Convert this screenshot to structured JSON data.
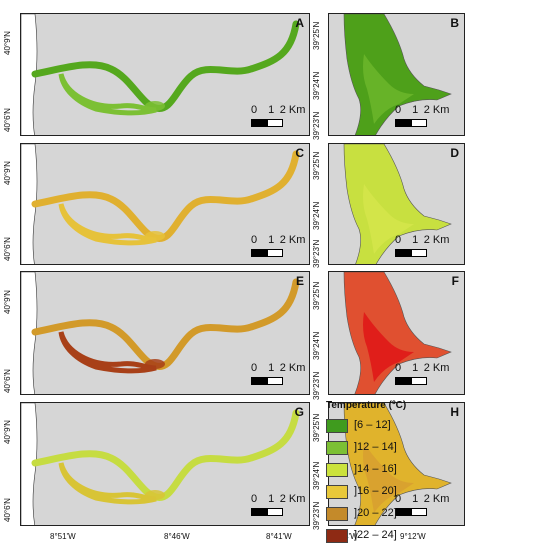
{
  "panels": [
    {
      "id": "A",
      "label": "A",
      "fill": "#55a81e",
      "inner": "#7cc034"
    },
    {
      "id": "B",
      "label": "B",
      "fill": "#4ea01a",
      "inner": "#6ab52a"
    },
    {
      "id": "C",
      "label": "C",
      "fill": "#e0b030",
      "inner": "#e6c23a"
    },
    {
      "id": "D",
      "label": "D",
      "fill": "#c8e040",
      "inner": "#d4e64a"
    },
    {
      "id": "E",
      "label": "E",
      "fill": "#d29a2a",
      "inner": "#a84018"
    },
    {
      "id": "F",
      "label": "F",
      "fill": "#e05030",
      "inner": "#e01818"
    },
    {
      "id": "G",
      "label": "G",
      "fill": "#c6dc42",
      "inner": "#d8c436"
    },
    {
      "id": "H",
      "label": "H",
      "fill": "#e0b32c",
      "inner": "#d8a030"
    }
  ],
  "scale_bar": {
    "ticks": [
      "0",
      "1",
      "2"
    ],
    "unit": "Km"
  },
  "axes": {
    "left_lat_top": "40°9'N",
    "left_lat_bottom": "40°6'N",
    "right_lat_top": "39°25'N",
    "right_lat_mid": "39°24'N",
    "right_lat_bottom": "39°23'N",
    "left_lon": [
      "8°51'W",
      "8°46'W",
      "8°41'W"
    ],
    "right_lon": [
      "9°14'W",
      "9°12'W"
    ]
  },
  "legend": {
    "title": "Temperature (ºC)",
    "items": [
      {
        "label": "[6 – 12]",
        "color": "#3f9b1e"
      },
      {
        "label": "]12 – 14]",
        "color": "#7cc034"
      },
      {
        "label": "]14 – 16]",
        "color": "#cbe23c"
      },
      {
        "label": "]16 – 20]",
        "color": "#e8c83a"
      },
      {
        "label": "]20 – 22]",
        "color": "#c48a2a"
      },
      {
        "label": "]22 – 24]",
        "color": "#8e2a14"
      }
    ]
  }
}
